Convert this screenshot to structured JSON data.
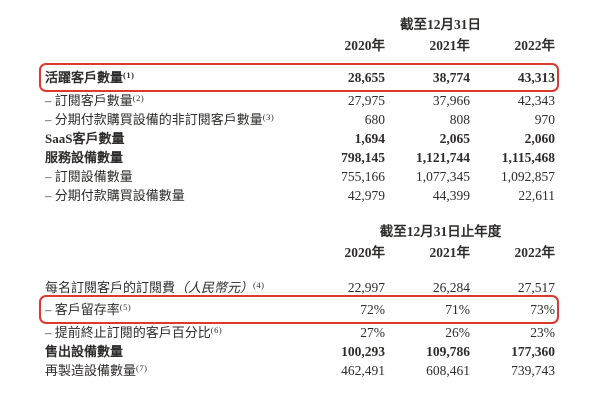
{
  "page": {
    "background": "#ffffff",
    "text_color": "#2e2d2b",
    "highlight_color": "#dc3a31"
  },
  "tables": [
    {
      "period_header": "截至12月31日",
      "years": [
        "2020年",
        "2021年",
        "2022年"
      ],
      "rows": [
        {
          "label": "活躍客戶數量",
          "sup": "(1)",
          "values": [
            "28,655",
            "38,774",
            "43,313"
          ],
          "bold": true,
          "highlighted": true
        },
        {
          "label": "– 訂閱客戶數量",
          "sup": "(2)",
          "values": [
            "27,975",
            "37,966",
            "42,343"
          ],
          "bold": false,
          "highlighted": false
        },
        {
          "label": "– 分期付款購買設備的非訂閱客戶數量",
          "sup": "(3)",
          "values": [
            "680",
            "808",
            "970"
          ],
          "bold": false,
          "highlighted": false
        },
        {
          "label": "SaaS客戶數量",
          "sup": "",
          "values": [
            "1,694",
            "2,065",
            "2,060"
          ],
          "bold": true,
          "highlighted": false
        },
        {
          "label": "服務設備數量",
          "sup": "",
          "values": [
            "798,145",
            "1,121,744",
            "1,115,468"
          ],
          "bold": true,
          "highlighted": false
        },
        {
          "label": "– 訂閱設備數量",
          "sup": "",
          "values": [
            "755,166",
            "1,077,345",
            "1,092,857"
          ],
          "bold": false,
          "highlighted": false
        },
        {
          "label": "– 分期付款購買設備數量",
          "sup": "",
          "values": [
            "42,979",
            "44,399",
            "22,611"
          ],
          "bold": false,
          "highlighted": false
        }
      ]
    },
    {
      "period_header": "截至12月31日止年度",
      "years": [
        "2020年",
        "2021年",
        "2022年"
      ],
      "rows": [
        {
          "label": "每名訂閱客戶的訂閱費",
          "paren": "（人民幣元）",
          "sup": "(4)",
          "values": [
            "22,997",
            "26,284",
            "27,517"
          ],
          "bold": false,
          "highlighted": false
        },
        {
          "label": "– 客戶留存率",
          "sup": "(5)",
          "values": [
            "72%",
            "71%",
            "73%"
          ],
          "bold": false,
          "highlighted": true
        },
        {
          "label": "– 提前終止訂閱的客戶百分比",
          "sup": "(6)",
          "values": [
            "27%",
            "26%",
            "23%"
          ],
          "bold": false,
          "highlighted": false
        },
        {
          "label": "售出設備數量",
          "sup": "",
          "values": [
            "100,293",
            "109,786",
            "177,360"
          ],
          "bold": true,
          "highlighted": false
        },
        {
          "label": "再製造設備數量",
          "sup": "(7)",
          "values": [
            "462,491",
            "608,461",
            "739,743"
          ],
          "bold": false,
          "highlighted": false
        }
      ]
    }
  ]
}
